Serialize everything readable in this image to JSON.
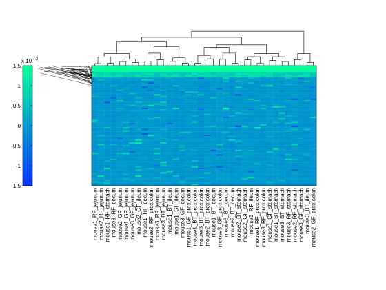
{
  "chart_data": {
    "type": "heatmap",
    "colorbar": {
      "exponent_label": "x 10",
      "exponent_power": "-3",
      "ticks": [
        "1.5",
        "1",
        "0.5",
        "0",
        "-0.5",
        "-1",
        "-1.5"
      ],
      "tick_values": [
        1.5,
        1,
        0.5,
        0,
        -0.5,
        -1,
        -1.5
      ],
      "range": [
        -1.5,
        1.5
      ],
      "colormap": [
        "#0033ff",
        "#00ff99"
      ]
    },
    "columns": [
      "mouse1_RF_jejunum",
      "mouse2_RF_jejunum",
      "mouse1_RF_stomach",
      "mouse3_RF_cecum",
      "mouse2_GF_jejunum",
      "mouse1_GF_jejunum",
      "mouse3_GF_jejunum",
      "mouse2_GF_ileum",
      "mouse1_RF_cecum",
      "mouse2_RF_prox.colon",
      "mouse3_RF_jejunum",
      "mouse3_BT_jejunum",
      "mouse1_BT_ileum",
      "mouse1_GF_ileum",
      "mouse3_GF_cecum",
      "mouse1_GF_prox.colon",
      "mouse1_BT_prox.colon",
      "mouse3_BT_prox.colon",
      "mouse2_BT_prox.colon",
      "mouse1_BT_cecum",
      "mouse3_GF_prox.colon",
      "mouse3_BT_cecum",
      "mouse2_BT_cecum",
      "mouse2_BT_stomach",
      "mouse2_GF_stomach",
      "mouse3_RF_ileum",
      "mouse1_RF_prox.colon",
      "mouse3_RF_prox.colon",
      "mouse1_GF_stomach",
      "mouse1_BT_stomach",
      "mouse3_BT_stomach",
      "mouse3_RF_stomach",
      "mouse2_RF_stomach",
      "mouse3_GF_stomach",
      "mouse3_BT_ileum",
      "mouse2_GF_prox.colon"
    ],
    "n_rows": 80,
    "saturated_top_rows": 4,
    "value_range": [
      -1.5,
      1.5
    ],
    "note_values": "matrix cell values are not labeled individually; most cells near 0 with bright band at top"
  }
}
